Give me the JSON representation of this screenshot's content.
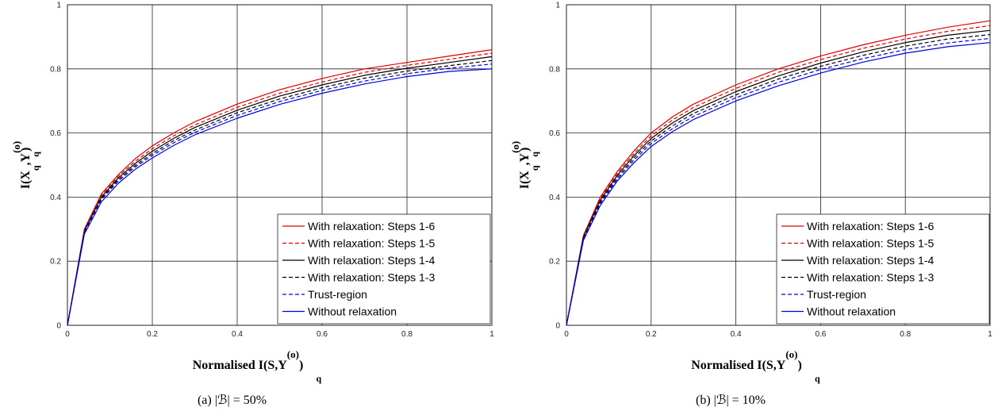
{
  "chart_data": [
    {
      "type": "line",
      "caption": "(a)  |ℬ| = 50%",
      "xlabel": "Normalised I(S,Y",
      "ylabel": "I(X",
      "xlim": [
        0,
        1
      ],
      "ylim": [
        0,
        1
      ],
      "xticks": [
        "0",
        "0.2",
        "0.4",
        "0.6",
        "0.8",
        "1"
      ],
      "yticks": [
        "0",
        "0.2",
        "0.4",
        "0.6",
        "0.8",
        "1"
      ],
      "grid": true,
      "legend_position": "lower-right",
      "x": [
        0,
        0.04,
        0.08,
        0.12,
        0.16,
        0.2,
        0.25,
        0.3,
        0.4,
        0.5,
        0.6,
        0.7,
        0.8,
        0.9,
        1.0
      ],
      "series": [
        {
          "name": "With relaxation: Steps 1-6",
          "color": "#e00000",
          "dash": "solid",
          "values": [
            0,
            0.3,
            0.41,
            0.47,
            0.52,
            0.56,
            0.6,
            0.635,
            0.69,
            0.735,
            0.77,
            0.8,
            0.82,
            0.84,
            0.86
          ]
        },
        {
          "name": "With relaxation: Steps 1-5",
          "color": "#e00000",
          "dash": "dashed",
          "values": [
            0,
            0.297,
            0.405,
            0.465,
            0.512,
            0.551,
            0.591,
            0.625,
            0.68,
            0.724,
            0.759,
            0.789,
            0.811,
            0.83,
            0.849
          ]
        },
        {
          "name": "With relaxation: Steps 1-4",
          "color": "#000000",
          "dash": "solid",
          "values": [
            0,
            0.295,
            0.4,
            0.46,
            0.505,
            0.543,
            0.583,
            0.617,
            0.671,
            0.715,
            0.75,
            0.78,
            0.802,
            0.82,
            0.838
          ]
        },
        {
          "name": "With relaxation: Steps 1-3",
          "color": "#000000",
          "dash": "dashed",
          "values": [
            0,
            0.292,
            0.396,
            0.455,
            0.499,
            0.536,
            0.576,
            0.609,
            0.663,
            0.706,
            0.741,
            0.771,
            0.793,
            0.81,
            0.826
          ]
        },
        {
          "name": "Trust-region",
          "color": "#0000e0",
          "dash": "dashed",
          "values": [
            0,
            0.29,
            0.392,
            0.45,
            0.494,
            0.53,
            0.569,
            0.602,
            0.655,
            0.698,
            0.733,
            0.762,
            0.785,
            0.802,
            0.815
          ]
        },
        {
          "name": "Without relaxation",
          "color": "#0000e0",
          "dash": "solid",
          "values": [
            0,
            0.285,
            0.385,
            0.443,
            0.487,
            0.522,
            0.561,
            0.594,
            0.646,
            0.689,
            0.724,
            0.753,
            0.776,
            0.792,
            0.8
          ]
        }
      ]
    },
    {
      "type": "line",
      "caption": "(b)  |ℬ| = 10%",
      "xlabel": "Normalised I(S,Y",
      "ylabel": "I(X",
      "xlim": [
        0,
        1
      ],
      "ylim": [
        0,
        1
      ],
      "xticks": [
        "0",
        "0.2",
        "0.4",
        "0.6",
        "0.8",
        "1"
      ],
      "yticks": [
        "0",
        "0.2",
        "0.4",
        "0.6",
        "0.8",
        "1"
      ],
      "grid": true,
      "legend_position": "lower-right",
      "x": [
        0,
        0.04,
        0.08,
        0.12,
        0.16,
        0.2,
        0.25,
        0.3,
        0.4,
        0.5,
        0.6,
        0.7,
        0.8,
        0.9,
        1.0
      ],
      "series": [
        {
          "name": "With relaxation: Steps 1-6",
          "color": "#e00000",
          "dash": "solid",
          "values": [
            0,
            0.28,
            0.4,
            0.48,
            0.545,
            0.6,
            0.65,
            0.69,
            0.75,
            0.8,
            0.84,
            0.875,
            0.905,
            0.93,
            0.95
          ]
        },
        {
          "name": "With relaxation: Steps 1-5",
          "color": "#e00000",
          "dash": "dashed",
          "values": [
            0,
            0.277,
            0.395,
            0.474,
            0.537,
            0.591,
            0.64,
            0.68,
            0.739,
            0.789,
            0.829,
            0.864,
            0.893,
            0.917,
            0.935
          ]
        },
        {
          "name": "With relaxation: Steps 1-4",
          "color": "#000000",
          "dash": "solid",
          "values": [
            0,
            0.275,
            0.39,
            0.468,
            0.53,
            0.583,
            0.631,
            0.67,
            0.729,
            0.778,
            0.818,
            0.853,
            0.882,
            0.905,
            0.92
          ]
        },
        {
          "name": "With relaxation: Steps 1-3",
          "color": "#000000",
          "dash": "dashed",
          "values": [
            0,
            0.272,
            0.385,
            0.462,
            0.523,
            0.575,
            0.622,
            0.661,
            0.719,
            0.768,
            0.808,
            0.842,
            0.871,
            0.893,
            0.907
          ]
        },
        {
          "name": "Trust-region",
          "color": "#0000e0",
          "dash": "dashed",
          "values": [
            0,
            0.27,
            0.38,
            0.456,
            0.516,
            0.567,
            0.613,
            0.652,
            0.71,
            0.758,
            0.798,
            0.832,
            0.86,
            0.881,
            0.895
          ]
        },
        {
          "name": "Without relaxation",
          "color": "#0000e0",
          "dash": "solid",
          "values": [
            0,
            0.265,
            0.374,
            0.45,
            0.508,
            0.558,
            0.604,
            0.642,
            0.7,
            0.747,
            0.787,
            0.821,
            0.849,
            0.869,
            0.882
          ]
        }
      ]
    }
  ]
}
